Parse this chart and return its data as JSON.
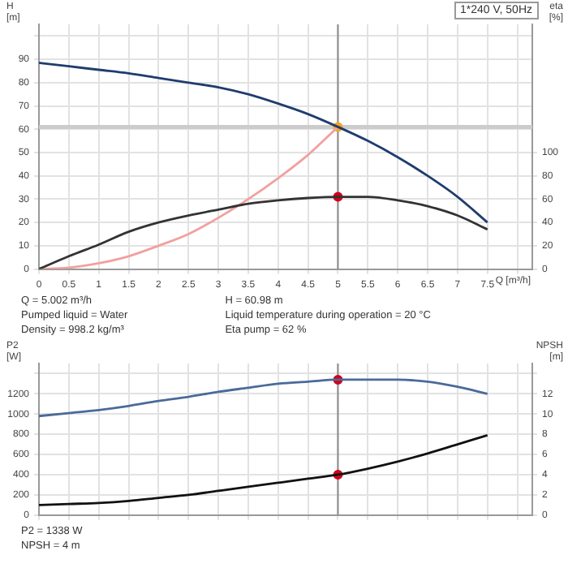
{
  "chart_data": [
    {
      "type": "line",
      "title": "1*240 V, 50Hz",
      "xlabel": "Q [m³/h]",
      "ylabel": "H [m]",
      "y2label": "eta [%]",
      "x": [
        0,
        0.5,
        1.0,
        1.5,
        2.0,
        2.5,
        3.0,
        3.5,
        4.0,
        4.5,
        5.0,
        5.5,
        6.0,
        6.5,
        7.0,
        7.5
      ],
      "series": [
        {
          "color": "#1f3d6e",
          "values": [
            88.5,
            87,
            85.5,
            84,
            82,
            80,
            78,
            75,
            71,
            66.5,
            61,
            55,
            48,
            40,
            31,
            20
          ]
        },
        {
          "color": "#333333",
          "axis": "y2",
          "values": [
            0,
            11,
            21,
            32,
            40,
            46,
            51,
            56,
            59,
            61,
            62,
            62,
            59,
            54,
            46,
            34
          ]
        },
        {
          "color": "#f2a0a0",
          "x": [
            0,
            0.5,
            1.0,
            1.5,
            2.0,
            2.5,
            3.0,
            3.5,
            4.0,
            4.5,
            5.0
          ],
          "values": [
            0,
            0.6,
            2.5,
            5.5,
            10,
            15,
            22,
            30,
            39,
            49,
            61
          ]
        },
        {
          "type": "scatter",
          "marker": "circle",
          "color": "#f5a623",
          "x": [
            5.0
          ],
          "values": [
            61
          ]
        },
        {
          "type": "scatter",
          "marker": "circle",
          "color": "#d0021b",
          "axis": "y2",
          "x": [
            5.0
          ],
          "values": [
            62
          ]
        }
      ],
      "xlim": [
        0,
        8.25
      ],
      "xticks": [
        0,
        0.5,
        1.0,
        1.5,
        2.0,
        2.5,
        3.0,
        3.5,
        4.0,
        4.5,
        5.0,
        5.5,
        6.0,
        6.5,
        7.0,
        7.5,
        {
          "value": 8,
          "label": null
        }
      ],
      "ylim": [
        0,
        105
      ],
      "yticks": [
        0,
        10,
        20,
        30,
        40,
        50,
        60,
        70,
        80,
        90,
        {
          "value": 100,
          "label": null
        }
      ],
      "y2lim": [
        0,
        210
      ],
      "y2ticks": [
        0,
        20,
        40,
        60,
        80,
        100
      ],
      "ref_lines": [
        {
          "axis": "x",
          "value": 5.0,
          "color": "#8a8a8a"
        },
        {
          "axis": "y",
          "value": 60.98,
          "color": "#cccccc"
        }
      ],
      "annotations": [
        "Q = 5.002 m³/h",
        "Pumped liquid = Water",
        "Density = 998.2 kg/m³",
        "H = 60.98 m",
        "Liquid temperature during operation = 20 °C",
        "Eta pump = 62 %"
      ],
      "grid": true,
      "marker": "none",
      "line_style": "solid"
    },
    {
      "type": "line",
      "ylabel": "P2 [W]",
      "y2label": "NPSH [m]",
      "x": [
        0,
        0.5,
        1.0,
        1.5,
        2.0,
        2.5,
        3.0,
        3.5,
        4.0,
        4.5,
        5.0,
        5.5,
        6.0,
        6.5,
        7.0,
        7.5
      ],
      "series": [
        {
          "color": "#4a6a9a",
          "values": [
            980,
            1010,
            1040,
            1080,
            1130,
            1170,
            1220,
            1260,
            1300,
            1320,
            1340,
            1340,
            1340,
            1320,
            1270,
            1200
          ]
        },
        {
          "color": "#111111",
          "axis": "y2",
          "values": [
            1.0,
            1.1,
            1.2,
            1.4,
            1.7,
            2.0,
            2.4,
            2.8,
            3.2,
            3.6,
            4.0,
            4.6,
            5.3,
            6.1,
            7.0,
            7.9
          ]
        },
        {
          "type": "scatter",
          "marker": "circle",
          "color": "#d0021b",
          "x": [
            5.0
          ],
          "values": [
            1340
          ]
        },
        {
          "type": "scatter",
          "marker": "circle",
          "color": "#d0021b",
          "axis": "y2",
          "x": [
            5.0
          ],
          "values": [
            4.0
          ]
        }
      ],
      "xlim": [
        0,
        8.25
      ],
      "xticks": [
        0,
        0.5,
        1.0,
        1.5,
        2.0,
        2.5,
        3.0,
        3.5,
        4.0,
        4.5,
        5.0,
        5.5,
        6.0,
        6.5,
        7.0,
        7.5,
        {
          "value": 8,
          "label": null
        }
      ],
      "ylim": [
        0,
        1500
      ],
      "yticks": [
        0,
        200,
        400,
        600,
        800,
        1000,
        1200,
        {
          "value": 1400,
          "label": null
        }
      ],
      "y2lim": [
        0,
        15
      ],
      "y2ticks": [
        0,
        2,
        4,
        6,
        8,
        10,
        12,
        {
          "value": 14,
          "label": null
        }
      ],
      "ref_lines": [
        {
          "axis": "x",
          "value": 5.0,
          "color": "#8a8a8a"
        }
      ],
      "annotations": [
        "P2 = 1338 W",
        "NPSH = 4 m"
      ],
      "tick_labels": "y",
      "grid": true,
      "marker": "none",
      "line_style": "solid"
    }
  ]
}
